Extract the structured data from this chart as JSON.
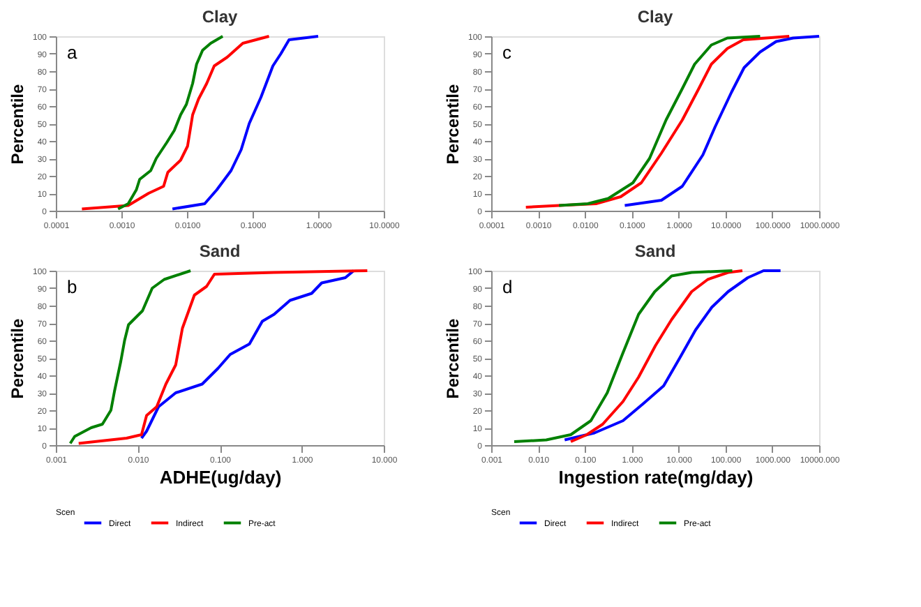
{
  "chart_data": [
    {
      "type": "line",
      "title": "Clay",
      "ylabel": "Percentile",
      "annotations": [
        "a"
      ],
      "legend": false,
      "grid": false,
      "log": "x",
      "xlim": [
        0.0001,
        10
      ],
      "xticks": [
        {
          "value": 0.0001,
          "label": "0.0001"
        },
        {
          "value": 0.001,
          "label": "0.0010"
        },
        {
          "value": 0.01,
          "label": "0.0100"
        },
        {
          "value": 0.1,
          "label": "0.1000"
        },
        {
          "value": 1,
          "label": "1.0000"
        },
        {
          "value": 10,
          "label": "10.0000"
        }
      ],
      "ylim": [
        0,
        100
      ],
      "yticks": [
        0,
        10,
        20,
        30,
        40,
        50,
        60,
        70,
        80,
        90,
        100
      ],
      "series": [
        {
          "color": "#0000ff",
          "x": [
            0.006,
            0.0186,
            0.0285,
            0.047,
            0.067,
            0.089,
            0.134,
            0.204,
            0.27,
            0.36,
            1.0
          ],
          "values": [
            1,
            4,
            12,
            23,
            35,
            50,
            65,
            83,
            90,
            98,
            100
          ]
        },
        {
          "color": "#ff0000",
          "x": [
            0.00025,
            0.00127,
            0.0026,
            0.0044,
            0.0051,
            0.008,
            0.0102,
            0.0122,
            0.015,
            0.02,
            0.026,
            0.041,
            0.071,
            0.178
          ],
          "values": [
            1,
            3,
            10,
            14,
            22,
            29,
            37,
            55,
            64,
            73,
            83,
            88,
            96,
            100
          ]
        },
        {
          "color": "#008000",
          "x": [
            0.00089,
            0.00127,
            0.00169,
            0.0019,
            0.0028,
            0.0034,
            0.0049,
            0.0064,
            0.008,
            0.0098,
            0.0122,
            0.014,
            0.0173,
            0.023,
            0.035
          ],
          "values": [
            1,
            4,
            12,
            18,
            23,
            30,
            39,
            46,
            55,
            61,
            73,
            84,
            92,
            96,
            100
          ]
        }
      ]
    },
    {
      "type": "line",
      "title": "Sand",
      "xlabel": "ADHE(ug/day)",
      "ylabel": "Percentile",
      "legend_title": "Scen",
      "annotations": [
        "b"
      ],
      "legend": "bottom",
      "grid": false,
      "log": "x",
      "xlim": [
        0.001,
        10
      ],
      "xticks": [
        {
          "value": 0.001,
          "label": "0.001"
        },
        {
          "value": 0.01,
          "label": "0.010"
        },
        {
          "value": 0.1,
          "label": "0.100"
        },
        {
          "value": 1,
          "label": "1.000"
        },
        {
          "value": 10,
          "label": "10.000"
        }
      ],
      "ylim": [
        0,
        100
      ],
      "yticks": [
        0,
        10,
        20,
        30,
        40,
        50,
        60,
        70,
        80,
        90,
        100
      ],
      "series": [
        {
          "name": "Direct",
          "color": "#0000ff",
          "x": [
            0.0111,
            0.0128,
            0.0179,
            0.029,
            0.061,
            0.095,
            0.134,
            0.23,
            0.33,
            0.46,
            0.72,
            1.32,
            1.75,
            3.4,
            4.3
          ],
          "values": [
            4,
            8,
            22,
            30,
            35,
            44,
            52,
            58,
            71,
            75,
            83,
            87,
            93,
            96,
            100
          ]
        },
        {
          "name": "Indirect",
          "color": "#ff0000",
          "x": [
            0.0019,
            0.0073,
            0.0111,
            0.0128,
            0.017,
            0.022,
            0.029,
            0.035,
            0.049,
            0.069,
            0.086,
            0.46,
            6.3
          ],
          "values": [
            1,
            4,
            6,
            17,
            22,
            35,
            46,
            67,
            86,
            91,
            98,
            99,
            100
          ]
        },
        {
          "name": "Pre-act",
          "color": "#008000",
          "x": [
            0.0015,
            0.0017,
            0.0027,
            0.0037,
            0.0047,
            0.0052,
            0.0062,
            0.0069,
            0.0077,
            0.0114,
            0.015,
            0.021,
            0.044
          ],
          "values": [
            1,
            5,
            10,
            12,
            20,
            31,
            48,
            60,
            69,
            77,
            90,
            95,
            100
          ]
        }
      ]
    },
    {
      "type": "line",
      "title": "Clay",
      "ylabel": "Percentile",
      "annotations": [
        "c"
      ],
      "legend": false,
      "grid": false,
      "log": "x",
      "xlim": [
        0.0001,
        1000
      ],
      "xticks": [
        {
          "value": 0.0001,
          "label": "0.0001"
        },
        {
          "value": 0.001,
          "label": "0.0010"
        },
        {
          "value": 0.01,
          "label": "0.0100"
        },
        {
          "value": 0.1,
          "label": "0.1000"
        },
        {
          "value": 1,
          "label": "1.0000"
        },
        {
          "value": 10,
          "label": "10.0000"
        },
        {
          "value": 100,
          "label": "100.0000"
        },
        {
          "value": 1000,
          "label": "1000.0000"
        }
      ],
      "ylim": [
        0,
        100
      ],
      "yticks": [
        0,
        10,
        20,
        30,
        40,
        50,
        60,
        70,
        80,
        90,
        100
      ],
      "series": [
        {
          "color": "#0000ff",
          "x": [
            0.071,
            0.43,
            1.2,
            3.3,
            6.0,
            13.5,
            25,
            55,
            121,
            280,
            1000
          ],
          "values": [
            3,
            6,
            14,
            32,
            48,
            68,
            82,
            91,
            97,
            99,
            100
          ]
        },
        {
          "color": "#ff0000",
          "x": [
            0.00055,
            0.0028,
            0.0172,
            0.058,
            0.16,
            0.43,
            1.2,
            2.7,
            5.0,
            11,
            24,
            230
          ],
          "values": [
            2,
            3,
            4,
            8,
            16,
            33,
            52,
            70,
            84,
            93,
            98,
            100
          ]
        },
        {
          "color": "#008000",
          "x": [
            0.0028,
            0.0115,
            0.0315,
            0.106,
            0.24,
            0.54,
            1.2,
            2.2,
            5.0,
            11,
            55
          ],
          "values": [
            3,
            4,
            7,
            16,
            30,
            52,
            70,
            84,
            95,
            99,
            100
          ]
        }
      ]
    },
    {
      "type": "line",
      "title": "Sand",
      "xlabel": "Ingestion rate(mg/day)",
      "ylabel": "Percentile",
      "legend_title": "Scen",
      "annotations": [
        "d"
      ],
      "legend": "bottom",
      "grid": false,
      "log": "x",
      "xlim": [
        0.001,
        10000
      ],
      "xticks": [
        {
          "value": 0.001,
          "label": "0.001"
        },
        {
          "value": 0.01,
          "label": "0.010"
        },
        {
          "value": 0.1,
          "label": "0.100"
        },
        {
          "value": 1,
          "label": "1.000"
        },
        {
          "value": 10,
          "label": "10.000"
        },
        {
          "value": 100,
          "label": "100.000"
        },
        {
          "value": 1000,
          "label": "1000.000"
        },
        {
          "value": 10000,
          "label": "10000.000"
        }
      ],
      "ylim": [
        0,
        100
      ],
      "yticks": [
        0,
        10,
        20,
        30,
        40,
        50,
        60,
        70,
        80,
        90,
        100
      ],
      "series": [
        {
          "name": "Direct",
          "color": "#0000ff",
          "x": [
            0.037,
            0.16,
            0.65,
            1.8,
            4.8,
            10.6,
            23,
            51,
            114,
            300,
            650,
            1500
          ],
          "values": [
            3,
            7,
            14,
            24,
            34,
            50,
            66,
            79,
            88,
            96,
            100,
            100
          ]
        },
        {
          "name": "Indirect",
          "color": "#ff0000",
          "x": [
            0.05,
            0.11,
            0.24,
            0.65,
            1.4,
            3.2,
            7.1,
            19,
            42,
            114,
            230
          ],
          "values": [
            2,
            6,
            12,
            25,
            39,
            57,
            72,
            88,
            95,
            99,
            100
          ]
        },
        {
          "name": "Pre-act",
          "color": "#008000",
          "x": [
            0.0031,
            0.015,
            0.05,
            0.134,
            0.3,
            0.63,
            1.4,
            3.1,
            7.1,
            19,
            140
          ],
          "values": [
            2,
            3,
            6,
            14,
            30,
            52,
            75,
            88,
            97,
            99,
            100
          ]
        }
      ]
    }
  ]
}
